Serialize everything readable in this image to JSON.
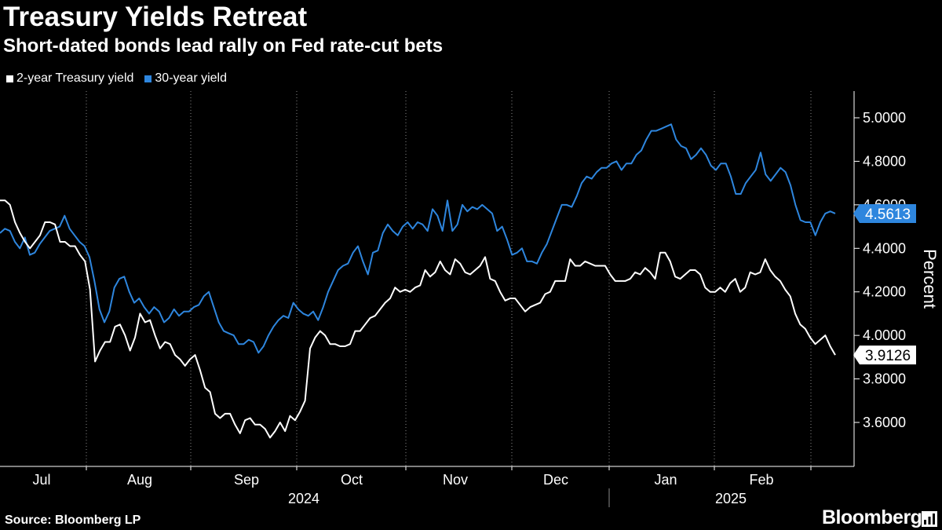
{
  "header": {
    "title": "Treasury Yields Retreat",
    "subtitle": "Short-dated bonds lead rally on Fed rate-cut bets"
  },
  "legend": [
    {
      "label": "2-year Treasury yield",
      "color": "#ffffff"
    },
    {
      "label": "30-year yield",
      "color": "#2e86de"
    }
  ],
  "footer": {
    "source": "Source: Bloomberg LP",
    "brand": "Bloomberg",
    "brand_icon": "bloomberg-terminal-icon"
  },
  "chart_data": {
    "type": "line",
    "title": "Treasury Yields Retreat",
    "subtitle": "Short-dated bonds lead rally on Fed rate-cut bets",
    "ylabel": "Percent",
    "xlabel": "",
    "ylim": [
      3.4,
      5.1
    ],
    "yticks": [
      3.6,
      3.8,
      4.0,
      4.2,
      4.4,
      4.6,
      4.8,
      5.0
    ],
    "ytick_labels": [
      "3.6000",
      "3.8000",
      "4.0000",
      "4.2000",
      "4.4000",
      "4.6000",
      "4.8000",
      "5.0000"
    ],
    "month_labels": [
      "Jul",
      "Aug",
      "Sep",
      "Oct",
      "Nov",
      "Dec",
      "Jan",
      "Feb"
    ],
    "year_labels": [
      "2024",
      "2025"
    ],
    "grid": "vertical dotted at month boundaries",
    "legend_position": "top-left",
    "series": [
      {
        "name": "2-year Treasury yield",
        "color": "#ffffff",
        "last_value_label": "3.9126",
        "values": [
          4.62,
          4.62,
          4.6,
          4.52,
          4.47,
          4.43,
          4.4,
          4.43,
          4.46,
          4.52,
          4.52,
          4.51,
          4.43,
          4.43,
          4.41,
          4.41,
          4.37,
          4.34,
          4.21,
          3.88,
          3.93,
          3.97,
          3.97,
          4.04,
          4.05,
          4.0,
          3.93,
          3.99,
          4.1,
          4.06,
          4.07,
          4.0,
          3.94,
          3.97,
          3.96,
          3.91,
          3.89,
          3.86,
          3.89,
          3.91,
          3.84,
          3.76,
          3.74,
          3.64,
          3.62,
          3.64,
          3.64,
          3.59,
          3.55,
          3.61,
          3.62,
          3.59,
          3.59,
          3.57,
          3.53,
          3.56,
          3.6,
          3.56,
          3.63,
          3.61,
          3.65,
          3.7,
          3.94,
          3.99,
          4.02,
          4.0,
          3.96,
          3.96,
          3.95,
          3.95,
          3.96,
          4.02,
          4.02,
          4.05,
          4.08,
          4.09,
          4.12,
          4.15,
          4.17,
          4.22,
          4.2,
          4.21,
          4.2,
          4.22,
          4.23,
          4.3,
          4.27,
          4.29,
          4.34,
          4.3,
          4.28,
          4.35,
          4.33,
          4.29,
          4.28,
          4.3,
          4.32,
          4.36,
          4.26,
          4.25,
          4.2,
          4.16,
          4.17,
          4.17,
          4.14,
          4.11,
          4.13,
          4.14,
          4.15,
          4.19,
          4.2,
          4.25,
          4.25,
          4.25,
          4.35,
          4.32,
          4.32,
          4.34,
          4.33,
          4.32,
          4.32,
          4.32,
          4.28,
          4.25,
          4.25,
          4.25,
          4.26,
          4.29,
          4.28,
          4.31,
          4.29,
          4.26,
          4.38,
          4.38,
          4.34,
          4.27,
          4.26,
          4.28,
          4.3,
          4.3,
          4.28,
          4.22,
          4.2,
          4.2,
          4.22,
          4.2,
          4.24,
          4.26,
          4.2,
          4.22,
          4.29,
          4.28,
          4.29,
          4.35,
          4.3,
          4.27,
          4.25,
          4.21,
          4.18,
          4.1,
          4.05,
          4.03,
          3.99,
          3.96,
          3.98,
          4.0,
          3.95,
          3.91
        ]
      },
      {
        "name": "30-year yield",
        "color": "#2e86de",
        "last_value_label": "4.5613",
        "values": [
          4.47,
          4.49,
          4.48,
          4.43,
          4.4,
          4.45,
          4.37,
          4.38,
          4.42,
          4.45,
          4.48,
          4.49,
          4.5,
          4.55,
          4.49,
          4.46,
          4.43,
          4.41,
          4.36,
          4.25,
          4.12,
          4.06,
          4.11,
          4.22,
          4.26,
          4.27,
          4.2,
          4.15,
          4.17,
          4.13,
          4.1,
          4.13,
          4.11,
          4.06,
          4.08,
          4.12,
          4.09,
          4.11,
          4.11,
          4.13,
          4.14,
          4.18,
          4.2,
          4.13,
          4.06,
          4.02,
          4.01,
          4.0,
          3.96,
          3.96,
          3.98,
          3.97,
          3.92,
          3.95,
          4.0,
          4.04,
          4.07,
          4.09,
          4.08,
          4.15,
          4.12,
          4.1,
          4.09,
          4.11,
          4.07,
          4.13,
          4.2,
          4.25,
          4.3,
          4.32,
          4.33,
          4.38,
          4.41,
          4.34,
          4.28,
          4.38,
          4.39,
          4.47,
          4.51,
          4.48,
          4.46,
          4.5,
          4.52,
          4.49,
          4.52,
          4.51,
          4.48,
          4.58,
          4.55,
          4.48,
          4.62,
          4.48,
          4.51,
          4.6,
          4.57,
          4.59,
          4.58,
          4.6,
          4.58,
          4.56,
          4.48,
          4.5,
          4.44,
          4.37,
          4.38,
          4.4,
          4.34,
          4.34,
          4.33,
          4.38,
          4.42,
          4.48,
          4.54,
          4.6,
          4.6,
          4.59,
          4.64,
          4.7,
          4.73,
          4.72,
          4.75,
          4.77,
          4.77,
          4.79,
          4.8,
          4.76,
          4.79,
          4.79,
          4.83,
          4.85,
          4.9,
          4.94,
          4.94,
          4.95,
          4.96,
          4.97,
          4.9,
          4.87,
          4.86,
          4.81,
          4.83,
          4.86,
          4.83,
          4.78,
          4.76,
          4.79,
          4.79,
          4.73,
          4.65,
          4.65,
          4.7,
          4.73,
          4.76,
          4.84,
          4.74,
          4.71,
          4.74,
          4.77,
          4.75,
          4.69,
          4.6,
          4.53,
          4.52,
          4.52,
          4.46,
          4.52,
          4.56,
          4.57,
          4.56
        ]
      }
    ]
  }
}
